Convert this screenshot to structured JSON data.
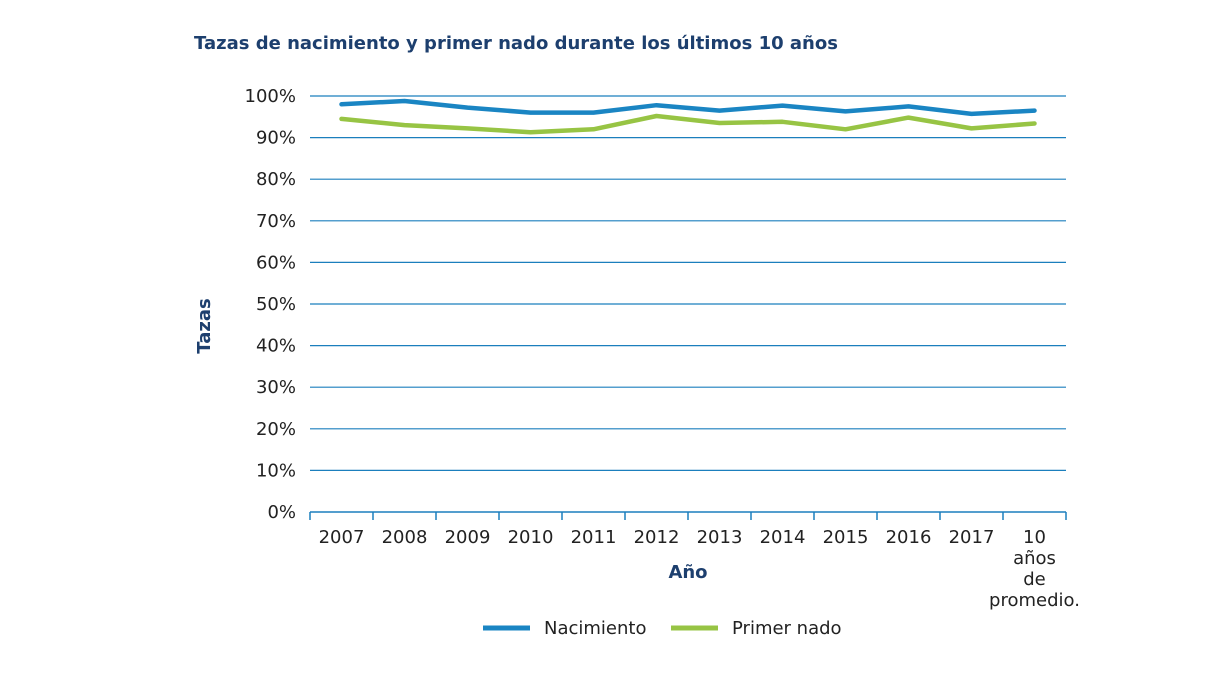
{
  "chart_data": {
    "type": "line",
    "title": "Tazas de nacimiento y primer nado durante los últimos 10 años",
    "xlabel": "Año",
    "ylabel": "Tazas",
    "categories": [
      "2007",
      "2008",
      "2009",
      "2010",
      "2011",
      "2012",
      "2013",
      "2014",
      "2015",
      "2016",
      "2017",
      "10 años de promedio."
    ],
    "category_lines": [
      [
        "2007"
      ],
      [
        "2008"
      ],
      [
        "2009"
      ],
      [
        "2010"
      ],
      [
        "2011"
      ],
      [
        "2012"
      ],
      [
        "2013"
      ],
      [
        "2014"
      ],
      [
        "2015"
      ],
      [
        "2016"
      ],
      [
        "2017"
      ],
      [
        "10",
        "años",
        "de",
        "promedio."
      ]
    ],
    "yticks": [
      "0%",
      "10%",
      "20%",
      "30%",
      "40%",
      "50%",
      "60%",
      "70%",
      "80%",
      "90%",
      "100%"
    ],
    "ylim": [
      0,
      100
    ],
    "grid": true,
    "legend_position": "bottom",
    "series": [
      {
        "name": "Nacimiento",
        "color": "#1a85c3",
        "values": [
          98.0,
          98.8,
          97.2,
          96.0,
          96.0,
          97.8,
          96.5,
          97.7,
          96.3,
          97.5,
          95.7,
          96.5
        ]
      },
      {
        "name": "Primer nado",
        "color": "#97c444",
        "values": [
          94.5,
          93.0,
          92.2,
          91.3,
          92.0,
          95.2,
          93.5,
          93.8,
          92.0,
          94.8,
          92.2,
          93.4
        ]
      }
    ]
  }
}
